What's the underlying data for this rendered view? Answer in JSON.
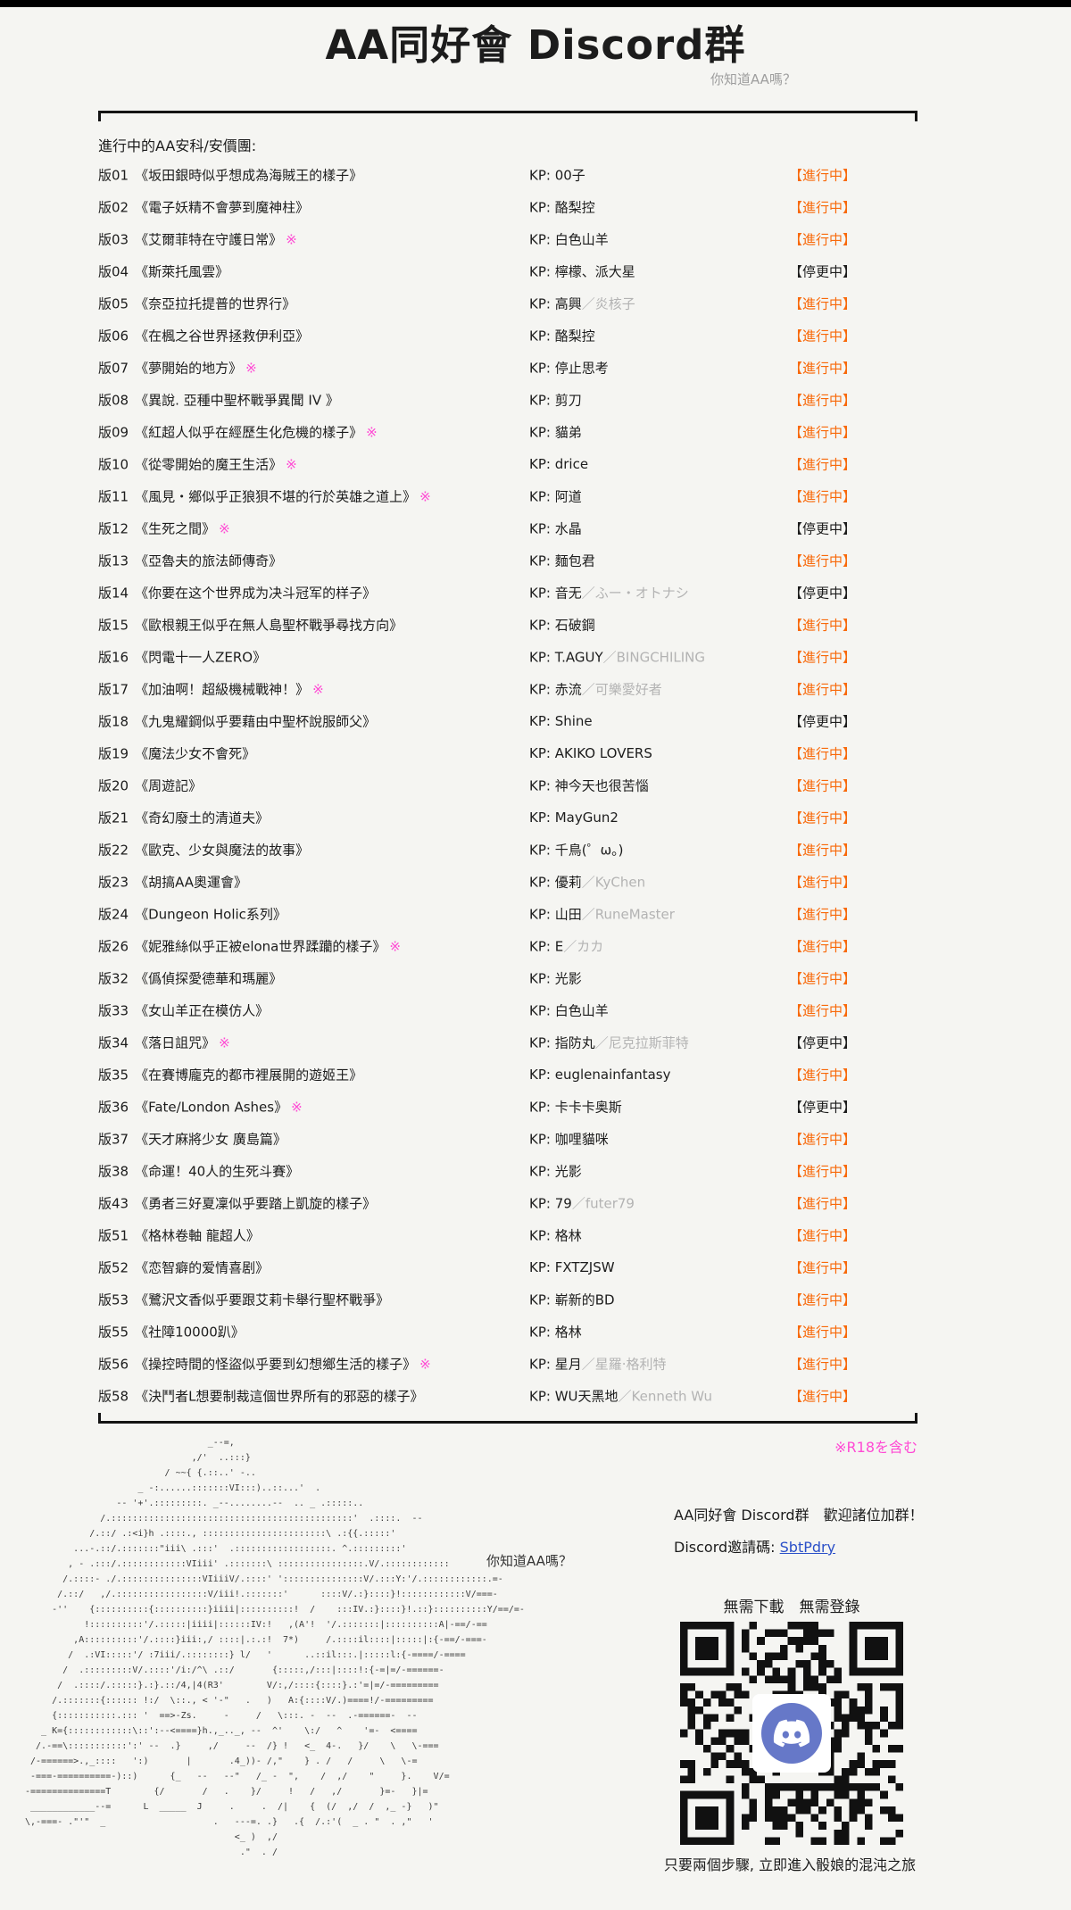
{
  "page": {
    "title": "AA同好會 Discord群",
    "subtitle": "你知道AA嗎？",
    "section_label": "進行中的AA安科/安價團:",
    "r18_note": "※R18を含む"
  },
  "colors": {
    "orange": "#f8690a",
    "pink": "#ff4ad4",
    "link": "#2b50c8",
    "ink": "#1c1c1c",
    "gray": "#9e9e9e",
    "pagebg": "#f5f5f2",
    "blurple": "#6678c8"
  },
  "labels": {
    "kp_prefix": "KP: ",
    "status_active": "【進行中】",
    "status_paused": "【停更中】",
    "r18_mark": "※"
  },
  "rows": [
    {
      "id": "版01",
      "title": "《坂田銀時似乎想成為海賊王的樣子》",
      "r18": false,
      "kp": "00子",
      "kp_gray": "",
      "active": true
    },
    {
      "id": "版02",
      "title": "《電子妖精不會夢到魔神柱》",
      "r18": false,
      "kp": "酪梨控",
      "kp_gray": "",
      "active": true
    },
    {
      "id": "版03",
      "title": "《艾爾菲特在守護日常》",
      "r18": true,
      "kp": "白色山羊",
      "kp_gray": "",
      "active": true
    },
    {
      "id": "版04",
      "title": "《斯萊托風雲》",
      "r18": false,
      "kp": "檸檬、派大星",
      "kp_gray": "",
      "active": false
    },
    {
      "id": "版05",
      "title": "《奈亞拉托提普的世界行》",
      "r18": false,
      "kp": "高興",
      "kp_gray": "／炎核子",
      "active": true
    },
    {
      "id": "版06",
      "title": "《在楓之谷世界拯救伊利亞》",
      "r18": false,
      "kp": "酪梨控",
      "kp_gray": "",
      "active": true
    },
    {
      "id": "版07",
      "title": "《夢開始的地方》",
      "r18": true,
      "kp": "停止思考",
      "kp_gray": "",
      "active": true
    },
    {
      "id": "版08",
      "title": "《異說. 亞種中聖杯戰爭異聞 IV 》",
      "r18": false,
      "kp": "剪刀",
      "kp_gray": "",
      "active": true
    },
    {
      "id": "版09",
      "title": "《紅超人似乎在經歷生化危機的樣子》",
      "r18": true,
      "kp": "貓弟",
      "kp_gray": "",
      "active": true
    },
    {
      "id": "版10",
      "title": "《從零開始的魔王生活》",
      "r18": true,
      "kp": "drice",
      "kp_gray": "",
      "active": true
    },
    {
      "id": "版11",
      "title": "《風見・鄉似乎正狼狽不堪的行於英雄之道上》",
      "r18": true,
      "kp": "阿道",
      "kp_gray": "",
      "active": true
    },
    {
      "id": "版12",
      "title": "《生死之間》",
      "r18": true,
      "kp": "水晶",
      "kp_gray": "",
      "active": false
    },
    {
      "id": "版13",
      "title": "《亞魯夫的旅法師傳奇》",
      "r18": false,
      "kp": "麵包君",
      "kp_gray": "",
      "active": true
    },
    {
      "id": "版14",
      "title": "《你要在这个世界成为决斗冠军的样子》",
      "r18": false,
      "kp": "音无",
      "kp_gray": "／ふー・オトナシ",
      "active": false
    },
    {
      "id": "版15",
      "title": "《歐根親王似乎在無人島聖杯戰爭尋找方向》",
      "r18": false,
      "kp": "石破鋼",
      "kp_gray": "",
      "active": true
    },
    {
      "id": "版16",
      "title": "《閃電十一人ZERO》",
      "r18": false,
      "kp": "T.AGUY",
      "kp_gray": "／BINGCHILING",
      "active": true
    },
    {
      "id": "版17",
      "title": "《加油啊！超級機械戰神！》",
      "r18": true,
      "kp": "赤流",
      "kp_gray": "／可樂愛好者",
      "active": true
    },
    {
      "id": "版18",
      "title": "《九鬼耀鋼似乎要藉由中聖杯說服師父》",
      "r18": false,
      "kp": "Shine",
      "kp_gray": "",
      "active": false
    },
    {
      "id": "版19",
      "title": "《魔法少女不會死》",
      "r18": false,
      "kp": "AKIKO LOVERS",
      "kp_gray": "",
      "active": true
    },
    {
      "id": "版20",
      "title": "《周遊記》",
      "r18": false,
      "kp": "神今天也很苦惱",
      "kp_gray": "",
      "active": true
    },
    {
      "id": "版21",
      "title": "《奇幻廢土的清道夫》",
      "r18": false,
      "kp": "MayGun2",
      "kp_gray": "",
      "active": true
    },
    {
      "id": "版22",
      "title": "《歐克、少女與魔法的故事》",
      "r18": false,
      "kp": "千鳥(゜ω。)",
      "kp_gray": "",
      "active": true
    },
    {
      "id": "版23",
      "title": "《胡搞AA奧運會》",
      "r18": false,
      "kp": "優莉",
      "kp_gray": "／KyChen",
      "active": true
    },
    {
      "id": "版24",
      "title": "《Dungeon Holic系列》",
      "r18": false,
      "kp": "山田",
      "kp_gray": "／RuneMaster",
      "active": true
    },
    {
      "id": "版26",
      "title": "《妮雅絲似乎正被elona世界蹂躪的樣子》",
      "r18": true,
      "kp": "E",
      "kp_gray": "／カカ",
      "active": true
    },
    {
      "id": "版32",
      "title": "《僞偵探愛德華和瑪麗》",
      "r18": false,
      "kp": "光影",
      "kp_gray": "",
      "active": true
    },
    {
      "id": "版33",
      "title": "《女山羊正在模仿人》",
      "r18": false,
      "kp": "白色山羊",
      "kp_gray": "",
      "active": true
    },
    {
      "id": "版34",
      "title": "《落日詛咒》",
      "r18": true,
      "kp": "指防丸",
      "kp_gray": "／尼克拉斯菲特",
      "active": false
    },
    {
      "id": "版35",
      "title": "《在賽博龐克的都市裡展開的遊姬王》",
      "r18": false,
      "kp": "euglenainfantasy",
      "kp_gray": "",
      "active": true
    },
    {
      "id": "版36",
      "title": "《Fate/London Ashes》",
      "r18": true,
      "kp": "卡卡卡奥斯",
      "kp_gray": "",
      "active": false
    },
    {
      "id": "版37",
      "title": "《天才麻將少女 廣島篇》",
      "r18": false,
      "kp": "咖哩貓咪",
      "kp_gray": "",
      "active": true
    },
    {
      "id": "版38",
      "title": "《命運！40人的生死斗賽》",
      "r18": false,
      "kp": "光影",
      "kp_gray": "",
      "active": true
    },
    {
      "id": "版43",
      "title": "《勇者三好夏凜似乎要踏上凱旋的樣子》",
      "r18": false,
      "kp": "79",
      "kp_gray": "／futer79",
      "active": true
    },
    {
      "id": "版51",
      "title": "《格林卷軸 龍超人》",
      "r18": false,
      "kp": "格林",
      "kp_gray": "",
      "active": true
    },
    {
      "id": "版52",
      "title": "《恋智癖的爱情喜剧》",
      "r18": false,
      "kp": "FXTZJSW",
      "kp_gray": "",
      "active": true
    },
    {
      "id": "版53",
      "title": "《鷺沢文香似乎要跟艾莉卡舉行聖杯戰爭》",
      "r18": false,
      "kp": "嶄新的BD",
      "kp_gray": "",
      "active": true
    },
    {
      "id": "版55",
      "title": "《社障10000趴》",
      "r18": false,
      "kp": "格林",
      "kp_gray": "",
      "active": true
    },
    {
      "id": "版56",
      "title": "《操控時間的怪盜似乎要到幻想鄉生活的樣子》",
      "r18": true,
      "kp": "星月",
      "kp_gray": "／星羅·格利特",
      "active": true
    },
    {
      "id": "版58",
      "title": "《決鬥者L想要制裁這個世界所有的邪惡的樣子》",
      "r18": false,
      "kp": "WU天黑地",
      "kp_gray": "／Kenneth Wu",
      "active": true
    }
  ],
  "footer": {
    "art_caption": "你知道AA嗎？",
    "invite_heading": "AA同好會 Discord群　歡迎諸位加群！",
    "invite_label": "Discord邀請碼: ",
    "invite_code": "SbtPdry",
    "qr_notes": "無需下載　無需登錄",
    "qr_caption": "只要兩個步驟, 立即進入骰娘的混沌之旅",
    "ascii_art": [
      "                                  _--=,",
      "                               ,/'  ..:::}",
      "                          / ~~{ {.::..' -..",
      "                     _ -:......:::::::VI:::)..::...'  .",
      "                 -- '+'.:::::::::. _--........--  .. _ .:::::..",
      "              /.:::::::::::::::::::::::::::::::::::::::::::::'  .::::.  --",
      "            /.::/ .:<i}h .::::., :::::::::::::::::::::::\\ .:{{.:::::'",
      "         ...-.::/.:::::::\"iii\\ .:::'  .::::::::::::::::::. ^.:::::::::'",
      "        , - .:::/.::::::::::::VIiii' .:::::::\\ ::::::::::::::::.V/.::::::::::::",
      "       /.::::- ./.:::::::::::::::VIiiiV/.::::' ':::::::::::::::V/.:::Y:'/.::::::::::::.=-",
      "      /.::/   ,/.:::::::::::::::::V/iii!.:::::::'      ::::V/.:}::::}!::::::::::::V/===-",
      "     -''    {::::::::::{::::::::::}iiii|::::::::::!  /    :::IV.:}::::}!.::}::::::::::Y/==/=-",
      "           !::::::::::'/.:::::|iiii|::::::IV:!   ,(A'!  '/.:::::::|::::::::::A|-==/-==",
      "         ,A::::::::::'/.::::}iii:,/ ::::|.:.:!  7*)     /.::::il::::|:::::|:{-==/-===-",
      "        /  .:VI:::::'/ :7iii/.::::::::} l/   '      ..::il:::.|:::::l:{-====/-====",
      "       /  .:::::::::V/.::::'/i:/^\\ .::/       {:::::,/:::|::::!:{-=|=/-======-",
      "      /  .::::/.:::::}.:}.::/4,|4(R3'        V/:,/::::{::::}.:'=|=/-=========",
      "     /.:::::::{:::::: !:/  \\::., < '-\"   .   )   A:{::::V/.)====!/-=========",
      "     {:::::::::::.::: '  ==>-Zs.     -     /   \\:::. -  --  .-======-  --",
      "   _ K={::::::::::::\\::':--<====}h.,_.._, --  ^'    \\:/   ^    '=-  <====",
      "  /.-==\\:::::::::::':' --  .}     ,/     --  /} !   <_  4-.   }/    \\   \\-===",
      " /-======>.,_::::   ':)       |       .4_))- /,\"    } . /   /     \\   \\-=",
      " -===-==========-)::)      {_   --   --\"   /_ -  \",    /  ,/    \"     }.    V/=",
      "-==============T        {/       /   .    }/     !   /   ,/       }=-   }|=",
      " ____________--=      L  _____  J     .     .  /|    {  (/  ,/  /  ,_ -}   )\"",
      "\\,-===- .\"'\"  _                    .   ---=. .}   .{  /.:'(  _ . \"  . ,\"   '",
      "                                       <_ )  ,/",
      "                                        .\"  . /"
    ]
  }
}
